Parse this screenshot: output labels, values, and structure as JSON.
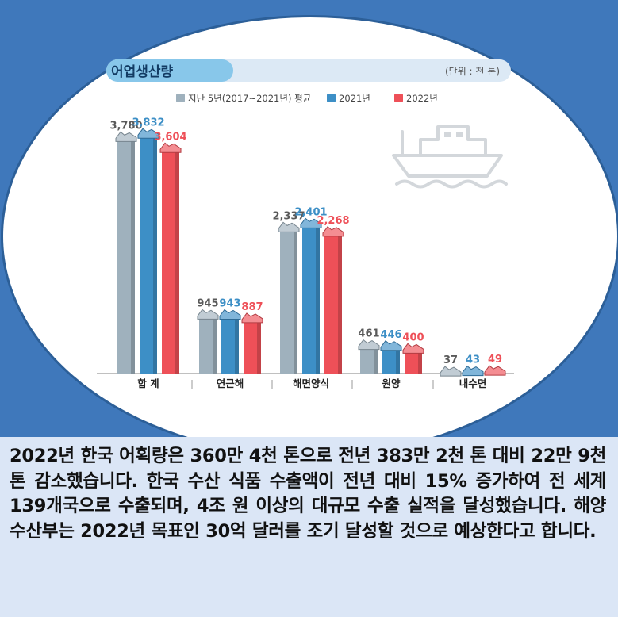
{
  "chart_data": {
    "type": "bar",
    "title": "어업생산량",
    "unit": "(단위 : 천 톤)",
    "categories": [
      "합 계",
      "연근해",
      "해면양식",
      "원양",
      "내수면"
    ],
    "series": [
      {
        "name": "지난 5년(2017~2021년) 평균",
        "color": "#9fb1bd",
        "values": [
          3780,
          945,
          2337,
          461,
          37
        ],
        "labels": [
          "3,780",
          "945",
          "2,337",
          "461",
          "37"
        ]
      },
      {
        "name": "2021년",
        "color": "#3d8fc6",
        "values": [
          3832,
          943,
          2401,
          446,
          43
        ],
        "labels": [
          "3,832",
          "943",
          "2,401",
          "446",
          "43"
        ]
      },
      {
        "name": "2022년",
        "color": "#ee5058",
        "values": [
          3604,
          887,
          2268,
          400,
          49
        ],
        "labels": [
          "3,604",
          "887",
          "2,268",
          "400",
          "49"
        ]
      }
    ],
    "ylim": [
      0,
      4000
    ],
    "legend": "top",
    "grid": false
  },
  "caption": {
    "text": "2022년 한국 어획량은 360만 4천 톤으로 전년 383만 2천 톤 대비 22만 9천 톤 감소했습니다. 한국 수산 식품 수출액이 전년 대비 15% 증가하여 전 세계 139개국으로 수출되며, 4조 원 이상의 대규모 수출 실적을 달성했습니다. 해양수산부는 2022년 목표인 30억 달러를 조기 달성할 것으로 예상한다고 합니다."
  },
  "decor": {
    "ship_icon": "ship-icon"
  }
}
